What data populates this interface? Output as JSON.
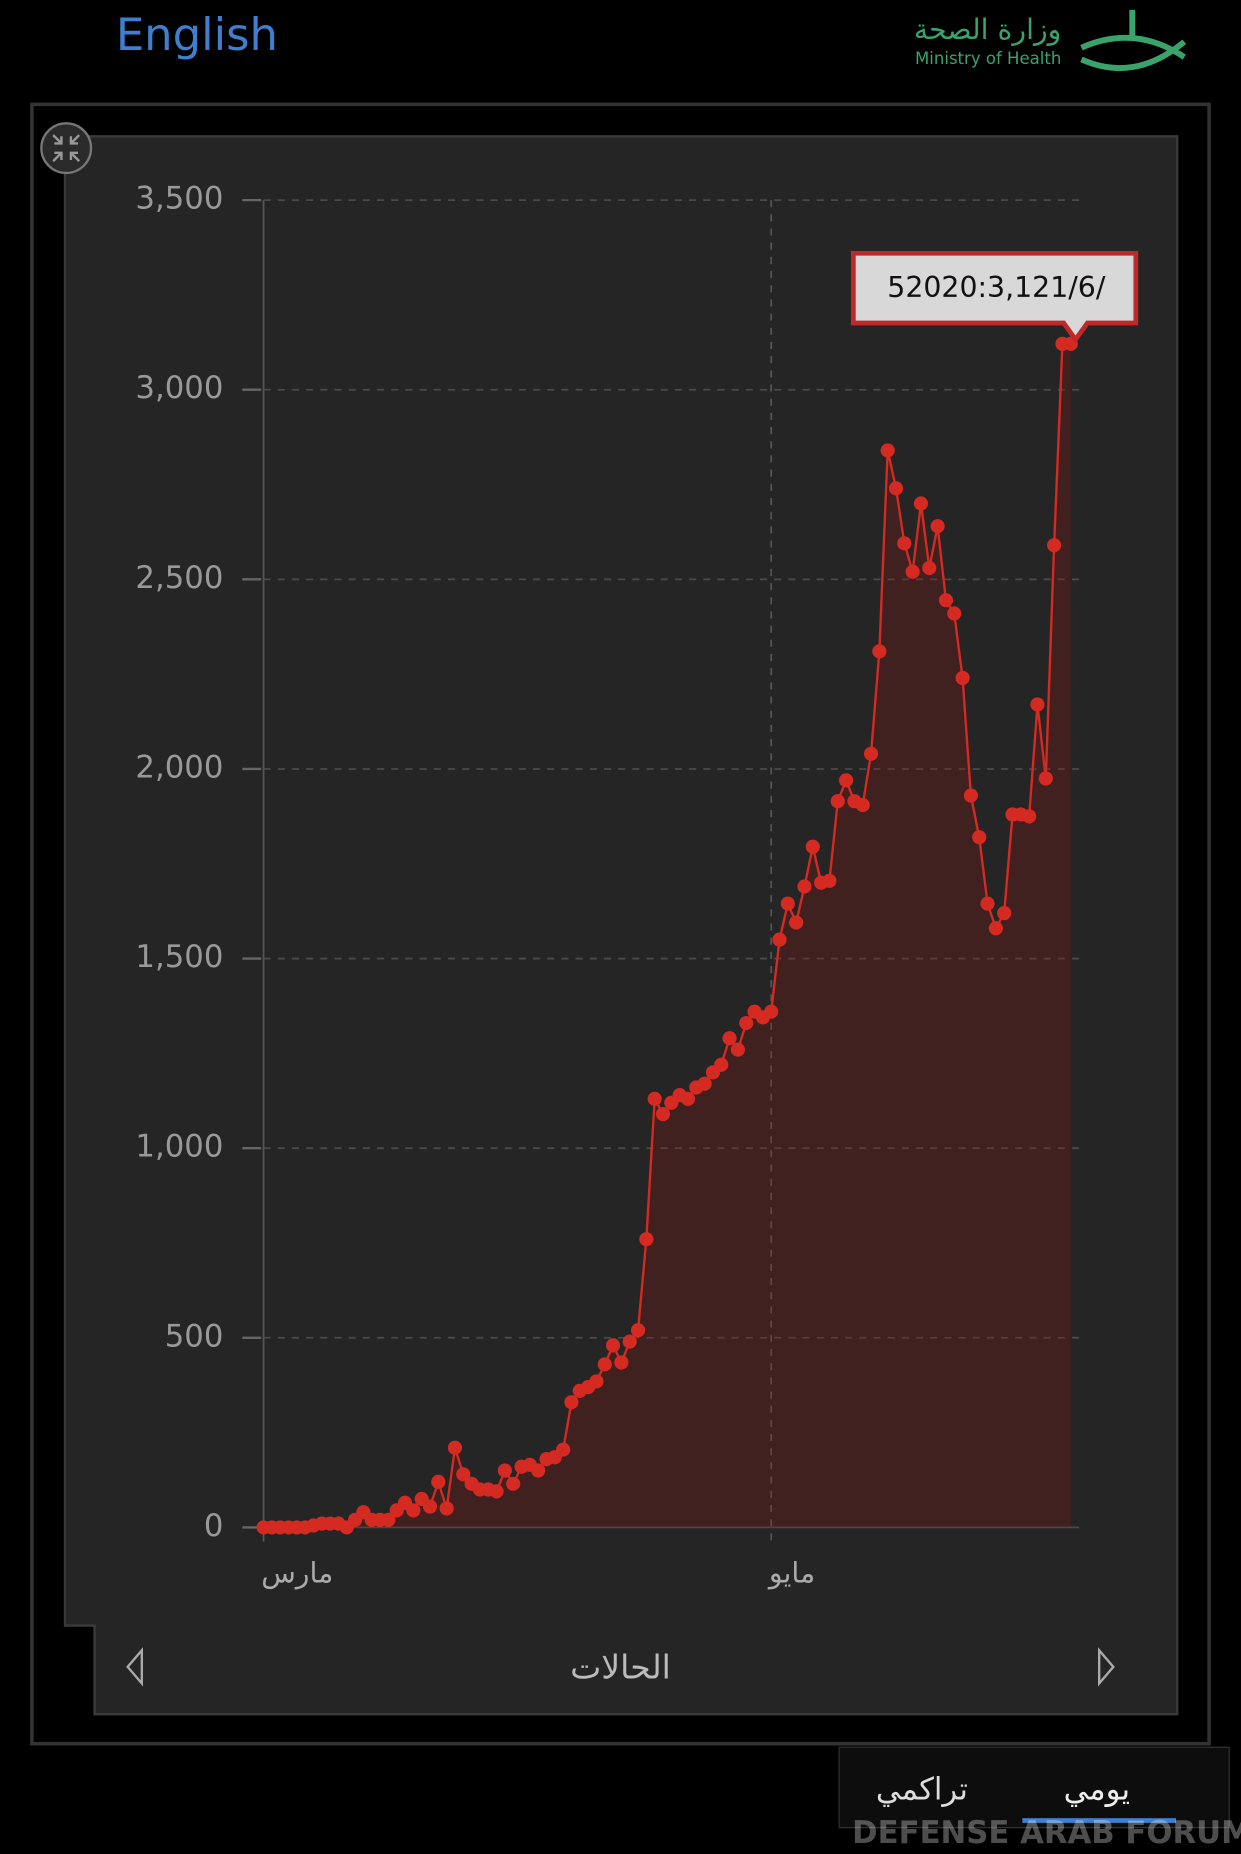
{
  "ui": {
    "language_link": "English",
    "logo_ar": "وزارة الصحة",
    "logo_en": "Ministry of Health",
    "tooltip": "52020:3,121/6/",
    "metric": "الحالات",
    "tab_daily": "يومي",
    "tab_cumulative": "تراكمي",
    "watermark": "DEFENSE ARAB FORUM"
  },
  "chart_data": {
    "type": "line",
    "color": "#d42a22",
    "grid": true,
    "x": [
      0,
      1,
      2,
      3,
      4,
      5,
      6,
      7,
      8,
      9,
      10,
      11,
      12,
      13,
      14,
      15,
      16,
      17,
      18,
      19,
      20,
      21,
      22,
      23,
      24,
      25,
      26,
      27,
      28,
      29,
      30,
      31,
      32,
      33,
      34,
      35,
      36,
      37,
      38,
      39,
      40,
      41,
      42,
      43,
      44,
      45,
      46,
      47,
      48,
      49,
      50,
      51,
      52,
      53,
      54,
      55,
      56,
      57,
      58,
      59,
      60,
      61,
      62,
      63,
      64,
      65,
      66,
      67,
      68,
      69,
      70,
      71,
      72,
      73,
      74,
      75,
      76,
      77,
      78,
      79,
      80,
      81,
      82,
      83,
      84,
      85,
      86,
      87,
      88,
      89,
      90,
      91,
      92,
      93,
      94,
      95,
      96,
      97
    ],
    "values": [
      0,
      0,
      0,
      0,
      0,
      0,
      5,
      10,
      10,
      10,
      0,
      20,
      40,
      20,
      20,
      20,
      45,
      65,
      45,
      75,
      55,
      120,
      50,
      210,
      140,
      115,
      100,
      100,
      95,
      150,
      115,
      160,
      165,
      150,
      180,
      185,
      205,
      330,
      360,
      370,
      385,
      430,
      480,
      435,
      490,
      520,
      760,
      1130,
      1090,
      1120,
      1140,
      1130,
      1160,
      1170,
      1200,
      1220,
      1290,
      1260,
      1330,
      1360,
      1345,
      1360,
      1550,
      1645,
      1595,
      1690,
      1795,
      1700,
      1705,
      1915,
      1970,
      1915,
      1905,
      2040,
      2310,
      2840,
      2740,
      2595,
      2520,
      2700,
      2530,
      2640,
      2445,
      2410,
      2240,
      1930,
      1820,
      1645,
      1580,
      1620,
      1880,
      1880,
      1875,
      2170,
      1975,
      2590,
      3121,
      3121
    ],
    "xlim": [
      0,
      98
    ],
    "xticks": [
      {
        "value": 0,
        "label": "مارس"
      },
      {
        "value": 61,
        "label": "مايو"
      }
    ],
    "ylim": [
      0,
      3500
    ],
    "yticks": [
      0,
      500,
      {
        "value": 1000,
        "label": "1,000"
      },
      {
        "value": 1500,
        "label": "1,500"
      },
      {
        "value": 2000,
        "label": "2,000"
      },
      {
        "value": 2500,
        "label": "2,500"
      },
      {
        "value": 3000,
        "label": "3,000"
      },
      {
        "value": 3500,
        "label": "3,500"
      }
    ]
  }
}
